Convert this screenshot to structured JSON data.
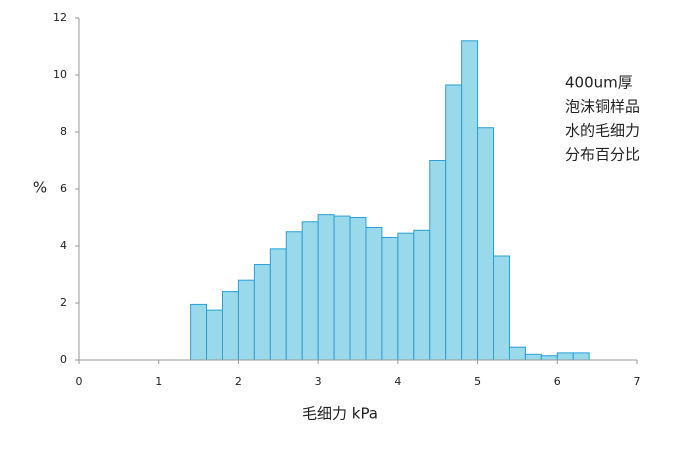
{
  "chart_data": {
    "type": "histogram",
    "annotation": [
      "400um厚",
      "泡沫铜样品",
      "水的毛细力",
      "分布百分比"
    ],
    "x_label": "毛细力 kPa",
    "y_label": "%",
    "bins": [
      1.4,
      1.6,
      1.8,
      2.0,
      2.2,
      2.4,
      2.6,
      2.8,
      3.0,
      3.2,
      3.4,
      3.6,
      3.8,
      4.0,
      4.2,
      4.4,
      4.6,
      4.8,
      5.0,
      5.2,
      5.4,
      5.6,
      5.8,
      6.0,
      6.2,
      6.4
    ],
    "values": [
      1.95,
      1.75,
      2.4,
      2.8,
      3.35,
      3.9,
      4.5,
      4.85,
      5.1,
      5.05,
      5.0,
      4.65,
      4.3,
      4.45,
      4.55,
      7.0,
      9.65,
      11.2,
      8.15,
      3.65,
      0.45,
      0.2,
      0.15,
      0.25,
      0.25
    ],
    "color": "#99d9ea",
    "edge_color": "#27a1d8",
    "xlim": [
      0,
      7
    ],
    "xticks": [
      0,
      1,
      2,
      3,
      4,
      5,
      6,
      7
    ],
    "ylim": [
      0,
      12
    ],
    "yticks": [
      0,
      2,
      4,
      6,
      8,
      10,
      12
    ],
    "grid": false
  }
}
